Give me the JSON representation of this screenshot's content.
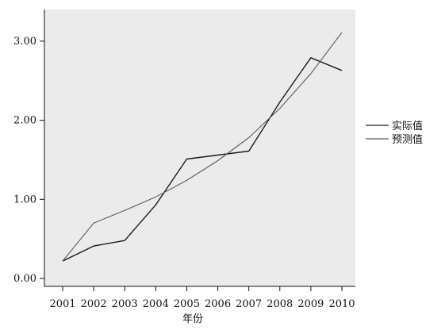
{
  "chart_data": {
    "type": "line",
    "title": "",
    "xlabel": "年份",
    "ylabel": "",
    "categories": [
      "2001",
      "2002",
      "2003",
      "2004",
      "2005",
      "2006",
      "2007",
      "2008",
      "2009",
      "2010"
    ],
    "ylim": [
      -0.1,
      3.4
    ],
    "yticks": [
      "0.00",
      "1.00",
      "2.00",
      "3.00"
    ],
    "ytick_values": [
      0,
      1,
      2,
      3
    ],
    "grid": false,
    "legend_position": "right",
    "plot_background": "#ebebeb",
    "series": [
      {
        "name": "实际值",
        "color": "#1a1a1a",
        "values": [
          0.22,
          0.41,
          0.48,
          0.93,
          1.51,
          1.56,
          1.61,
          2.23,
          2.79,
          2.63
        ]
      },
      {
        "name": "预测值",
        "color": "#5a5a5a",
        "values": [
          0.22,
          0.7,
          0.86,
          1.03,
          1.24,
          1.49,
          1.78,
          2.15,
          2.59,
          3.11
        ]
      }
    ]
  }
}
